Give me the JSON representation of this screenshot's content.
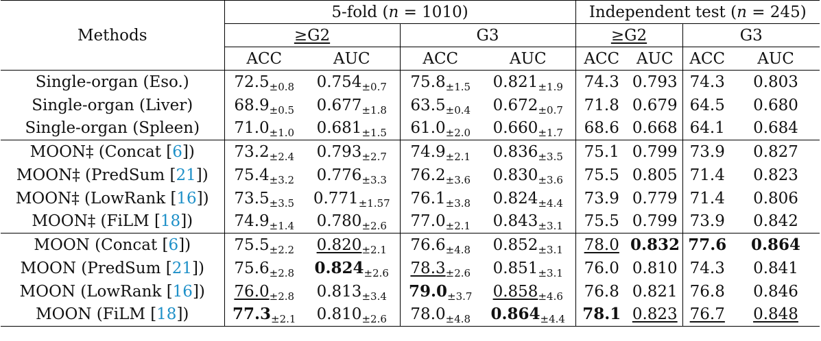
{
  "header": {
    "methods": "Methods",
    "fivefold": "5-fold (n = 1010)",
    "indep": "Independent test (n = 245)",
    "g2": "≥G2",
    "g3": "G3",
    "acc": "ACC",
    "auc": "AUC"
  },
  "groups": [
    [
      {
        "m": "Single-organ (Eso.)",
        "cells": [
          [
            "72.5",
            "±0.8"
          ],
          [
            "0.754",
            "±0.7"
          ],
          [
            "75.8",
            "±1.5"
          ],
          [
            "0.821",
            "±1.9"
          ],
          [
            "74.3",
            ""
          ],
          [
            "0.793",
            ""
          ],
          [
            "74.3",
            ""
          ],
          [
            "0.803",
            ""
          ]
        ]
      },
      {
        "m": "Single-organ (Liver)",
        "cells": [
          [
            "68.9",
            "±0.5"
          ],
          [
            "0.677",
            "±1.8"
          ],
          [
            "63.5",
            "±0.4"
          ],
          [
            "0.672",
            "±0.7"
          ],
          [
            "71.8",
            ""
          ],
          [
            "0.679",
            ""
          ],
          [
            "64.5",
            ""
          ],
          [
            "0.680",
            ""
          ]
        ]
      },
      {
        "m": "Single-organ (Spleen)",
        "cells": [
          [
            "71.0",
            "±1.0"
          ],
          [
            "0.681",
            "±1.5"
          ],
          [
            "61.0",
            "±2.0"
          ],
          [
            "0.660",
            "±1.7"
          ],
          [
            "68.6",
            ""
          ],
          [
            "0.668",
            ""
          ],
          [
            "64.1",
            ""
          ],
          [
            "0.684",
            ""
          ]
        ]
      }
    ],
    [
      {
        "m": "MOON‡ (Concat [",
        "ref": "6",
        "m2": "])",
        "cells": [
          [
            "73.2",
            "±2.4"
          ],
          [
            "0.793",
            "±2.7"
          ],
          [
            "74.9",
            "±2.1"
          ],
          [
            "0.836",
            "±3.5"
          ],
          [
            "75.1",
            ""
          ],
          [
            "0.799",
            ""
          ],
          [
            "73.9",
            ""
          ],
          [
            "0.827",
            ""
          ]
        ]
      },
      {
        "m": "MOON‡ (PredSum [",
        "ref": "21",
        "m2": "])",
        "cells": [
          [
            "75.4",
            "±3.2"
          ],
          [
            "0.776",
            "±3.3"
          ],
          [
            "76.2",
            "±3.6"
          ],
          [
            "0.830",
            "±3.6"
          ],
          [
            "75.5",
            ""
          ],
          [
            "0.805",
            ""
          ],
          [
            "71.4",
            ""
          ],
          [
            "0.823",
            ""
          ]
        ]
      },
      {
        "m": "MOON‡ (LowRank [",
        "ref": "16",
        "m2": "])",
        "cells": [
          [
            "73.5",
            "±3.5"
          ],
          [
            "0.771",
            "±1.57"
          ],
          [
            "76.1",
            "±3.8"
          ],
          [
            "0.824",
            "±4.4"
          ],
          [
            "73.9",
            ""
          ],
          [
            "0.779",
            ""
          ],
          [
            "71.4",
            ""
          ],
          [
            "0.806",
            ""
          ]
        ]
      },
      {
        "m": "MOON‡ (FiLM [",
        "ref": "18",
        "m2": "])",
        "cells": [
          [
            "74.9",
            "±1.4"
          ],
          [
            "0.780",
            "±2.6"
          ],
          [
            "77.0",
            "±2.1"
          ],
          [
            "0.843",
            "±3.1"
          ],
          [
            "75.5",
            ""
          ],
          [
            "0.799",
            ""
          ],
          [
            "73.9",
            ""
          ],
          [
            "0.842",
            ""
          ]
        ]
      }
    ],
    [
      {
        "m": "MOON (Concat [",
        "ref": "6",
        "m2": "])",
        "cells": [
          [
            "75.5",
            "±2.2"
          ],
          [
            "0.820",
            "±2.1",
            "u"
          ],
          [
            "76.6",
            "±4.8"
          ],
          [
            "0.852",
            "±3.1"
          ],
          [
            "78.0",
            "",
            "u"
          ],
          [
            "0.832",
            "",
            "b"
          ],
          [
            "77.6",
            "",
            "b"
          ],
          [
            "0.864",
            "",
            "b"
          ]
        ]
      },
      {
        "m": "MOON (PredSum [",
        "ref": "21",
        "m2": "])",
        "cells": [
          [
            "75.6",
            "±2.8"
          ],
          [
            "0.824",
            "±2.6",
            "b"
          ],
          [
            "78.3",
            "±2.6",
            "u"
          ],
          [
            "0.851",
            "±3.1"
          ],
          [
            "76.0",
            ""
          ],
          [
            "0.810",
            ""
          ],
          [
            "74.3",
            ""
          ],
          [
            "0.841",
            ""
          ]
        ]
      },
      {
        "m": "MOON (LowRank [",
        "ref": "16",
        "m2": "])",
        "cells": [
          [
            "76.0",
            "±2.8",
            "u"
          ],
          [
            "0.813",
            "±3.4"
          ],
          [
            "79.0",
            "±3.7",
            "b"
          ],
          [
            "0.858",
            "±4.6",
            "u"
          ],
          [
            "76.8",
            ""
          ],
          [
            "0.821",
            ""
          ],
          [
            "76.8",
            ""
          ],
          [
            "0.846",
            ""
          ]
        ]
      },
      {
        "m": "MOON (FiLM [",
        "ref": "18",
        "m2": "])",
        "cells": [
          [
            "77.3",
            "±2.1",
            "b"
          ],
          [
            "0.810",
            "±2.6"
          ],
          [
            "78.0",
            "±4.8"
          ],
          [
            "0.864",
            "±4.4",
            "b"
          ],
          [
            "78.1",
            "",
            "b"
          ],
          [
            "0.823",
            "",
            "u"
          ],
          [
            "76.7",
            "",
            "u"
          ],
          [
            "0.848",
            "",
            "u"
          ]
        ]
      }
    ]
  ]
}
